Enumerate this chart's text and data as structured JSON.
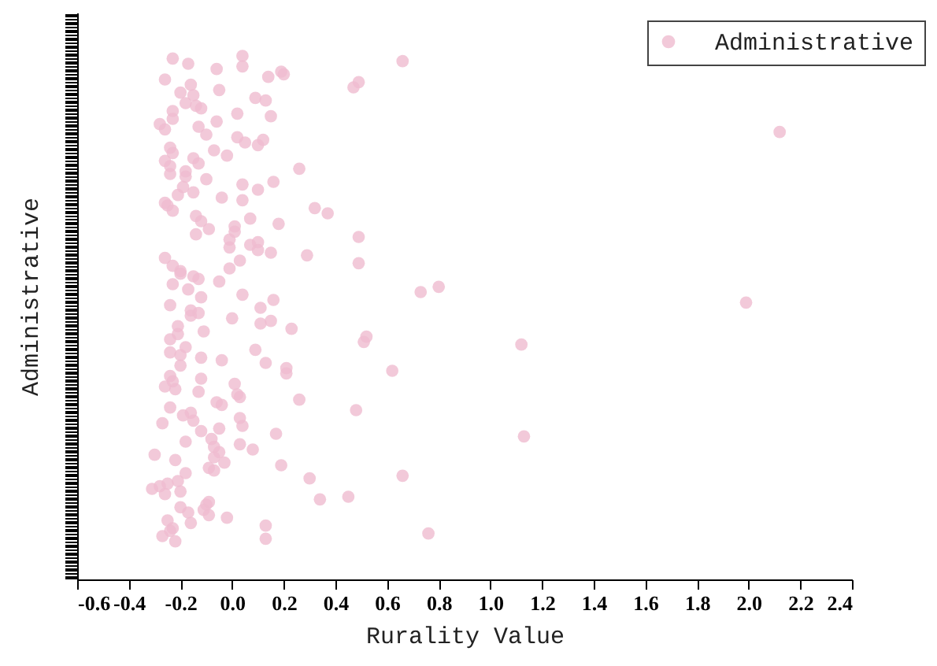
{
  "chart_data": {
    "type": "scatter",
    "orientation": "horizontal",
    "xlabel": "Rurality Value",
    "ylabel": "Administrative",
    "legend": "top right",
    "marker": "circle",
    "grid": false,
    "tick_labels": "x",
    "xlim": [
      -0.6,
      2.4
    ],
    "xticks": [
      {
        "value": -0.6,
        "label": "-0.6"
      },
      {
        "value": -0.4,
        "label": "-0.4"
      },
      {
        "value": -0.2,
        "label": "-0.2"
      },
      {
        "value": 0,
        "label": "0.0"
      },
      {
        "value": 0.2,
        "label": "0.2"
      },
      {
        "value": 0.4,
        "label": "0.4"
      },
      {
        "value": 0.6,
        "label": "0.6"
      },
      {
        "value": 0.8,
        "label": "0.8"
      },
      {
        "value": 1,
        "label": "1.0"
      },
      {
        "value": 1.2,
        "label": "1.2"
      },
      {
        "value": 1.4,
        "label": "1.4"
      },
      {
        "value": 1.6,
        "label": "1.6"
      },
      {
        "value": 1.8,
        "label": "1.8"
      },
      {
        "value": 2,
        "label": "2.0"
      },
      {
        "value": 2.2,
        "label": "2.2"
      },
      {
        "value": 2.4,
        "label": "2.4"
      }
    ],
    "categories": [
      null,
      null,
      null,
      null,
      null,
      null,
      null,
      null,
      null,
      null,
      null,
      null,
      null,
      null,
      null,
      null,
      null,
      null,
      null,
      null,
      null,
      null,
      null,
      null,
      null,
      null,
      null,
      null,
      null,
      null,
      null,
      null,
      null,
      null,
      null,
      null,
      null,
      null,
      null,
      null,
      null,
      null,
      null,
      null,
      null,
      null,
      null,
      null,
      null,
      null,
      null,
      null,
      null,
      null,
      null,
      null,
      null,
      null,
      null,
      null,
      null,
      null,
      null,
      null,
      null,
      null,
      null,
      null,
      null,
      null,
      null,
      null,
      null,
      null,
      null,
      null,
      null,
      null,
      null,
      null,
      null,
      null,
      null,
      null,
      null,
      null,
      null,
      null,
      null,
      null,
      null,
      null,
      null,
      null,
      null,
      null,
      null,
      null,
      null,
      null,
      null,
      null,
      null,
      null,
      null,
      null,
      null,
      null,
      null,
      null,
      null,
      null,
      null,
      null,
      null,
      null,
      null,
      null,
      null,
      null,
      null,
      null,
      null,
      null,
      null,
      null,
      null,
      null,
      null,
      null,
      null,
      null,
      null,
      null,
      null,
      null,
      null,
      null,
      null,
      null,
      null,
      null,
      null,
      null,
      null,
      null,
      null,
      null,
      null,
      null,
      null,
      null,
      null,
      null,
      null,
      null,
      null,
      null,
      null,
      null,
      null,
      null,
      null,
      null,
      null,
      null,
      null,
      null,
      null,
      null,
      null,
      null,
      null,
      null,
      null,
      null,
      null,
      null,
      null,
      null,
      null,
      null,
      null,
      null,
      null,
      null,
      null,
      null,
      null,
      null,
      null,
      null,
      null,
      null,
      null,
      null,
      null,
      null,
      null,
      null,
      null,
      null,
      null,
      null,
      null,
      null,
      null,
      null,
      null,
      null,
      null,
      null,
      null,
      null,
      null,
      null
    ],
    "series": [
      {
        "name": "Administrative",
        "color": "#efbcd0",
        "values": [
          null,
          null,
          null,
          null,
          null,
          null,
          null,
          null,
          null,
          null,
          null,
          null,
          null,
          null,
          null,
          null,
          0.04,
          -0.23,
          0.66,
          -0.17,
          0.04,
          -0.06,
          0.19,
          0.2,
          0.14,
          -0.26,
          0.49,
          -0.16,
          0.47,
          -0.05,
          -0.2,
          -0.15,
          0.09,
          0.13,
          -0.18,
          -0.14,
          -0.12,
          -0.23,
          0.02,
          0.15,
          -0.23,
          -0.06,
          -0.28,
          -0.13,
          -0.26,
          2.12,
          -0.1,
          0.02,
          0.12,
          0.05,
          0.1,
          -0.24,
          -0.07,
          -0.23,
          -0.02,
          -0.15,
          -0.26,
          -0.13,
          -0.24,
          0.26,
          -0.18,
          -0.24,
          -0.18,
          -0.1,
          0.16,
          0.04,
          -0.19,
          0.1,
          -0.15,
          -0.21,
          -0.04,
          0.04,
          -0.26,
          -0.25,
          0.32,
          -0.23,
          0.37,
          -0.14,
          0.07,
          -0.12,
          0.18,
          0.01,
          -0.09,
          0.01,
          -0.14,
          0.49,
          -0.01,
          0.1,
          0.07,
          -0.01,
          0.1,
          0.15,
          0.29,
          -0.26,
          0.03,
          0.49,
          -0.23,
          -0.01,
          -0.2,
          -0.2,
          -0.15,
          -0.13,
          -0.05,
          -0.23,
          0.8,
          -0.17,
          0.73,
          0.04,
          -0.12,
          0.16,
          1.99,
          -0.24,
          0.11,
          -0.16,
          -0.13,
          -0.16,
          0.0,
          0.15,
          0.11,
          -0.21,
          0.23,
          -0.11,
          -0.21,
          0.52,
          -0.24,
          0.51,
          1.12,
          -0.18,
          0.09,
          -0.24,
          -0.2,
          -0.12,
          -0.04,
          0.13,
          -0.2,
          0.21,
          0.62,
          0.21,
          -0.24,
          -0.12,
          -0.23,
          0.01,
          -0.26,
          -0.22,
          -0.13,
          0.02,
          0.03,
          0.26,
          -0.06,
          -0.04,
          -0.24,
          0.48,
          -0.16,
          -0.19,
          0.03,
          -0.15,
          -0.27,
          0.04,
          -0.05,
          -0.12,
          0.17,
          1.13,
          -0.08,
          -0.18,
          0.03,
          -0.07,
          0.08,
          -0.05,
          -0.3,
          -0.07,
          -0.22,
          -0.03,
          0.19,
          -0.09,
          -0.07,
          -0.18,
          0.66,
          0.3,
          -0.21,
          -0.25,
          -0.28,
          -0.31,
          -0.2,
          -0.26,
          0.45,
          0.34,
          -0.09,
          -0.1,
          -0.2,
          -0.11,
          -0.17,
          -0.09,
          -0.02,
          -0.25,
          -0.16,
          0.13,
          -0.23,
          -0.24,
          0.76,
          -0.27,
          0.13,
          -0.22,
          null,
          null,
          null,
          null,
          null,
          null,
          null,
          null,
          null,
          null,
          null,
          null,
          null,
          null
        ]
      }
    ]
  }
}
